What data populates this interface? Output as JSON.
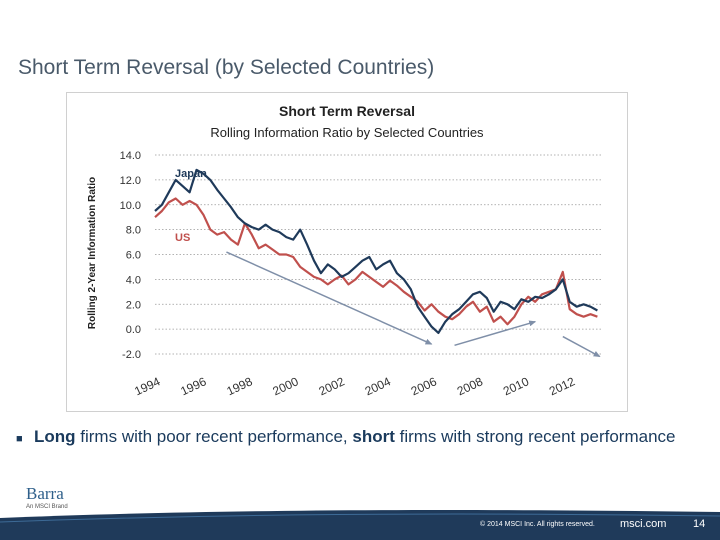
{
  "slide": {
    "title": "Short Term Reversal (by Selected Countries)",
    "bullet": {
      "long_word": "Long",
      "mid_text": " firms with poor recent performance, ",
      "short_word": "short",
      "end_text": " firms with strong recent performance"
    },
    "logo": {
      "name": "Barra",
      "tagline": "An MSCI Brand"
    },
    "footer": {
      "copyright": "© 2014 MSCI Inc. All rights reserved.",
      "site": "msci.com",
      "page": "14"
    }
  },
  "colors": {
    "japan": "#1f3a5a",
    "us": "#c0504d",
    "arrow": "#7f8fa8",
    "footer": "#1f3a5a",
    "title": "#4a5a6a"
  },
  "chart_data": {
    "type": "line",
    "title": "Short Term Reversal",
    "subtitle": "Rolling Information Ratio by Selected Countries",
    "xlabel": "",
    "ylabel": "Rolling 2-Year Information Ratio",
    "ylim": [
      -2.0,
      14.0
    ],
    "yticks": [
      "14.0",
      "12.0",
      "10.0",
      "8.0",
      "6.0",
      "4.0",
      "2.0",
      "0.0",
      "-2.0"
    ],
    "xlim": [
      1994,
      2013.4
    ],
    "xticks": [
      "1994",
      "1996",
      "1998",
      "2000",
      "2002",
      "2004",
      "2006",
      "2008",
      "2010",
      "2012"
    ],
    "grid": true,
    "series": [
      {
        "name": "Japan",
        "x": [
          1994.0,
          1994.3,
          1994.6,
          1994.9,
          1995.2,
          1995.5,
          1995.8,
          1996.1,
          1996.4,
          1996.7,
          1997.0,
          1997.3,
          1997.6,
          1997.9,
          1998.2,
          1998.5,
          1998.8,
          1999.1,
          1999.4,
          1999.7,
          2000.0,
          2000.3,
          2000.6,
          2000.9,
          2001.2,
          2001.5,
          2001.8,
          2002.1,
          2002.4,
          2002.7,
          2003.0,
          2003.3,
          2003.6,
          2003.9,
          2004.2,
          2004.5,
          2004.8,
          2005.1,
          2005.4,
          2005.7,
          2006.0,
          2006.3,
          2006.6,
          2006.9,
          2007.2,
          2007.5,
          2007.8,
          2008.1,
          2008.4,
          2008.7,
          2009.0,
          2009.3,
          2009.6,
          2009.9,
          2010.2,
          2010.5,
          2010.8,
          2011.1,
          2011.4,
          2011.7,
          2012.0,
          2012.3,
          2012.6,
          2012.9,
          2013.2
        ],
        "values": [
          9.5,
          10.0,
          11.0,
          12.0,
          11.5,
          11.0,
          12.8,
          12.5,
          12.0,
          11.2,
          10.5,
          9.8,
          9.0,
          8.5,
          8.2,
          8.0,
          8.4,
          8.0,
          7.8,
          7.4,
          7.2,
          8.0,
          6.8,
          5.5,
          4.5,
          5.2,
          4.8,
          4.2,
          4.5,
          5.0,
          5.5,
          5.8,
          4.8,
          5.2,
          5.5,
          4.5,
          4.0,
          3.2,
          1.8,
          1.0,
          0.2,
          -0.3,
          0.6,
          1.2,
          1.6,
          2.2,
          2.8,
          3.0,
          2.5,
          1.4,
          2.2,
          2.0,
          1.6,
          2.4,
          2.2,
          2.6,
          2.5,
          2.8,
          3.2,
          4.0,
          2.2,
          1.8,
          2.0,
          1.8,
          1.5
        ]
      },
      {
        "name": "US",
        "x": [
          1994.0,
          1994.3,
          1994.6,
          1994.9,
          1995.2,
          1995.5,
          1995.8,
          1996.1,
          1996.4,
          1996.7,
          1997.0,
          1997.3,
          1997.6,
          1997.9,
          1998.2,
          1998.5,
          1998.8,
          1999.1,
          1999.4,
          1999.7,
          2000.0,
          2000.3,
          2000.6,
          2000.9,
          2001.2,
          2001.5,
          2001.8,
          2002.1,
          2002.4,
          2002.7,
          2003.0,
          2003.3,
          2003.6,
          2003.9,
          2004.2,
          2004.5,
          2004.8,
          2005.1,
          2005.4,
          2005.7,
          2006.0,
          2006.3,
          2006.6,
          2006.9,
          2007.2,
          2007.5,
          2007.8,
          2008.1,
          2008.4,
          2008.7,
          2009.0,
          2009.3,
          2009.6,
          2009.9,
          2010.2,
          2010.5,
          2010.8,
          2011.1,
          2011.4,
          2011.7,
          2012.0,
          2012.3,
          2012.6,
          2012.9,
          2013.2
        ],
        "values": [
          9.0,
          9.5,
          10.2,
          10.5,
          10.0,
          10.3,
          10.0,
          9.2,
          8.0,
          7.6,
          7.8,
          7.2,
          6.8,
          8.5,
          7.6,
          6.5,
          6.8,
          6.4,
          6.0,
          6.0,
          5.8,
          5.0,
          4.6,
          4.2,
          4.0,
          3.6,
          4.0,
          4.3,
          3.6,
          4.0,
          4.6,
          4.2,
          3.8,
          3.4,
          3.9,
          3.5,
          3.0,
          2.6,
          2.2,
          1.5,
          2.0,
          1.4,
          1.0,
          0.8,
          1.2,
          1.8,
          2.2,
          1.4,
          1.8,
          0.6,
          1.0,
          0.4,
          1.0,
          2.0,
          2.6,
          2.2,
          2.8,
          3.0,
          3.2,
          4.6,
          1.6,
          1.2,
          1.0,
          1.2,
          1.0
        ]
      }
    ],
    "annotations": [
      "Japan",
      "US"
    ],
    "trend_arrows": [
      {
        "from": [
          1997.1,
          6.2
        ],
        "to": [
          2006.0,
          -1.2
        ]
      },
      {
        "from": [
          2007.0,
          -1.3
        ],
        "to": [
          2010.5,
          0.6
        ]
      },
      {
        "from": [
          2011.7,
          -0.6
        ],
        "to": [
          2013.3,
          -2.2
        ]
      }
    ]
  }
}
